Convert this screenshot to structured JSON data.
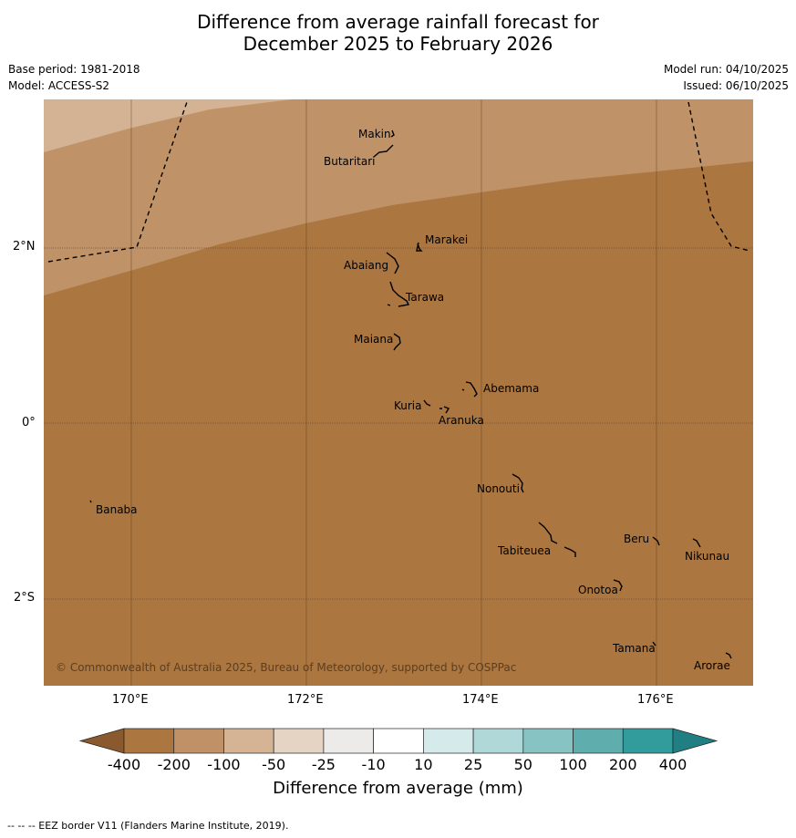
{
  "title_line1": "Difference from average rainfall forecast for",
  "title_line2": "December 2025 to February 2026",
  "base_period": "Base period: 1981-2018",
  "model": "Model: ACCESS-S2",
  "model_run": "Model run: 04/10/2025",
  "issued": "Issued: 06/10/2025",
  "copyright": "© Commonwealth of Australia 2025, Bureau of Meteorology, supported by COSPPac",
  "lat_labels": {
    "n2": "2°N",
    "eq": "0°",
    "s2": "2°S"
  },
  "lon_labels": {
    "e170": "170°E",
    "e172": "172°E",
    "e174": "174°E",
    "e176": "176°E"
  },
  "places": {
    "makin": "Makin",
    "butaritari": "Butaritari",
    "marakei": "Marakei",
    "abaiang": "Abaiang",
    "tarawa": "Tarawa",
    "maiana": "Maiana",
    "abemama": "Abemama",
    "kuria": "Kuria",
    "aranuka": "Aranuka",
    "nonouti": "Nonouti",
    "banaba": "Banaba",
    "beru": "Beru",
    "nikunau": "Nikunau",
    "tabiteuea": "Tabiteuea",
    "onotoa": "Onotoa",
    "tamana": "Tamana",
    "arorae": "Arorae"
  },
  "colorbar": {
    "labels": [
      "-400",
      "-200",
      "-100",
      "-50",
      "-25",
      "-10",
      "10",
      "25",
      "50",
      "100",
      "200",
      "400"
    ],
    "colors": [
      "#ab763f",
      "#c09167",
      "#d5b495",
      "#e5d3c4",
      "#ecebe9",
      "#ffffff",
      "#d5ebeb",
      "#b0d8d8",
      "#87c3c3",
      "#5fadad",
      "#329b9b"
    ],
    "under_color": "#8a5a2e",
    "over_color": "#1f7f82",
    "title": "Difference from average (mm)"
  },
  "map_colors": {
    "dry_strong": "#ab763f",
    "dry_mid": "#bf9267",
    "dry_light": "#d3b393"
  },
  "footer": "--  --  -- EEZ border V11 (Flanders Marine Institute, 2019)."
}
